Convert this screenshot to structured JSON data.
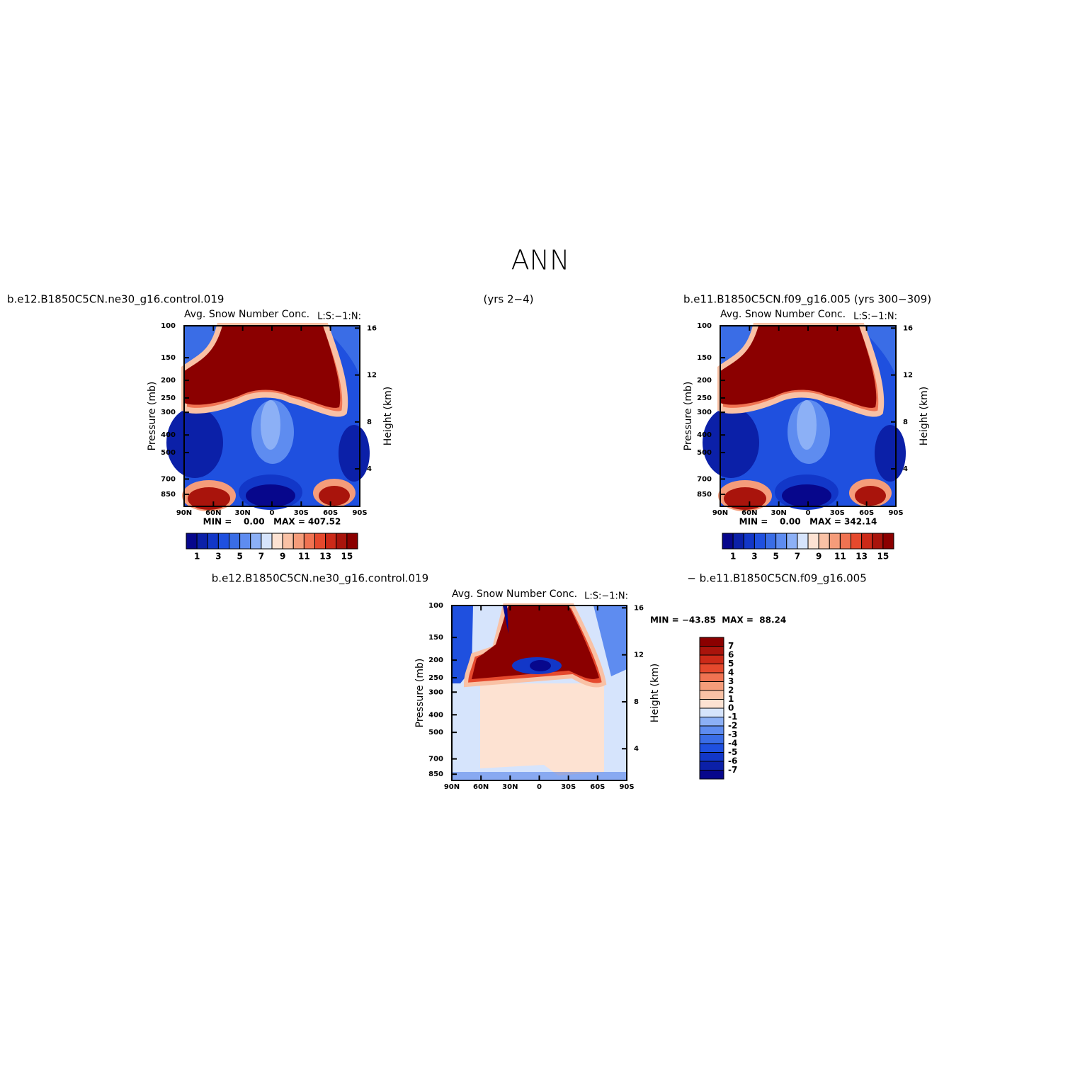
{
  "title": "ANN",
  "chart_data": [
    {
      "type": "contour",
      "left_string": "b.e12.B1850C5CN.ne30_g16.control.019",
      "right_string": "(yrs 2−4)",
      "center_string": "Avg. Snow Number Conc.",
      "corner_string": "L:S:−1:N:",
      "ylabel": "Pressure (mb)",
      "y2label": "Height (km)",
      "xlim": [
        90,
        -90
      ],
      "xticks": [
        {
          "value": 90,
          "label": "90N"
        },
        {
          "value": 60,
          "label": "60N"
        },
        {
          "value": 30,
          "label": "30N"
        },
        0,
        {
          "value": -30,
          "label": "30S"
        },
        {
          "value": -60,
          "label": "60S"
        },
        {
          "value": -90,
          "label": "90S"
        }
      ],
      "ylim": [
        100,
        990
      ],
      "log_y": true,
      "yticks": [
        100,
        150,
        200,
        250,
        300,
        400,
        500,
        700,
        850
      ],
      "y2lim": [
        0.8,
        16.2
      ],
      "y2ticks": [
        4,
        8,
        12,
        16
      ],
      "min_max": "MIN =    0.00   MAX = 407.52",
      "colorbar": {
        "orientation": "horizontal",
        "levels": [
          1,
          3,
          5,
          7,
          9,
          11,
          13,
          15
        ],
        "colors": [
          "#07078c",
          "#0b20a8",
          "#1237c8",
          "#1f50df",
          "#3a6de6",
          "#5e8cf0",
          "#8cb0f6",
          "#d6e4fc",
          "#fde2d2",
          "#f9c1a5",
          "#f59c7a",
          "#f07352",
          "#e5492d",
          "#cc2a18",
          "#a9140c",
          "#8b0000"
        ]
      }
    },
    {
      "type": "contour",
      "left_string": "b.e11.B1850C5CN.f09_g16.005 (yrs 300−309)",
      "center_string": "Avg. Snow Number Conc.",
      "corner_string": "L:S:−1:N:",
      "ylabel": "Pressure (mb)",
      "y2label": "Height (km)",
      "xlim": [
        90,
        -90
      ],
      "xticks": [
        {
          "value": 90,
          "label": "90N"
        },
        {
          "value": 60,
          "label": "60N"
        },
        {
          "value": 30,
          "label": "30N"
        },
        0,
        {
          "value": -30,
          "label": "30S"
        },
        {
          "value": -60,
          "label": "60S"
        },
        {
          "value": -90,
          "label": "90S"
        }
      ],
      "ylim": [
        100,
        990
      ],
      "log_y": true,
      "yticks": [
        100,
        150,
        200,
        250,
        300,
        400,
        500,
        700,
        850
      ],
      "y2lim": [
        0.8,
        16.2
      ],
      "y2ticks": [
        4,
        8,
        12,
        16
      ],
      "min_max": "MIN =    0.00   MAX = 342.14",
      "colorbar": {
        "orientation": "horizontal",
        "levels": [
          1,
          3,
          5,
          7,
          9,
          11,
          13,
          15
        ],
        "colors": [
          "#07078c",
          "#0b20a8",
          "#1237c8",
          "#1f50df",
          "#3a6de6",
          "#5e8cf0",
          "#8cb0f6",
          "#d6e4fc",
          "#fde2d2",
          "#f9c1a5",
          "#f59c7a",
          "#f07352",
          "#e5492d",
          "#cc2a18",
          "#a9140c",
          "#8b0000"
        ]
      }
    },
    {
      "type": "contour_diff",
      "left_string": "b.e12.B1850C5CN.ne30_g16.control.019",
      "right_string": "− b.e11.B1850C5CN.f09_g16.005",
      "center_string": "Avg. Snow Number Conc.",
      "corner_string": "L:S:−1:N:",
      "ylabel": "Pressure (mb)",
      "y2label": "Height (km)",
      "xlim": [
        90,
        -90
      ],
      "xticks": [
        {
          "value": 90,
          "label": "90N"
        },
        {
          "value": 60,
          "label": "60N"
        },
        {
          "value": 30,
          "label": "30N"
        },
        0,
        {
          "value": -30,
          "label": "30S"
        },
        {
          "value": -60,
          "label": "60S"
        },
        {
          "value": -90,
          "label": "90S"
        }
      ],
      "ylim": [
        100,
        920
      ],
      "log_y": true,
      "yticks": [
        100,
        150,
        200,
        250,
        300,
        400,
        500,
        700,
        850
      ],
      "y2lim": [
        1.3,
        16.2
      ],
      "y2ticks": [
        4,
        8,
        12,
        16
      ],
      "min_max": "MIN = −43.85  MAX =  88.24",
      "colorbar": {
        "orientation": "vertical",
        "levels": [
          7,
          6,
          5,
          4,
          3,
          2,
          1,
          0,
          -1,
          -2,
          -3,
          -4,
          -5,
          -6,
          -7
        ],
        "colors": [
          "#8b0000",
          "#a9140c",
          "#cc2a18",
          "#e5492d",
          "#f07352",
          "#f59c7a",
          "#f9c1a5",
          "#fde2d2",
          "#d6e4fc",
          "#8cb0f6",
          "#5e8cf0",
          "#3a6de6",
          "#1f50df",
          "#1237c8",
          "#0b20a8",
          "#07078c"
        ]
      }
    }
  ]
}
